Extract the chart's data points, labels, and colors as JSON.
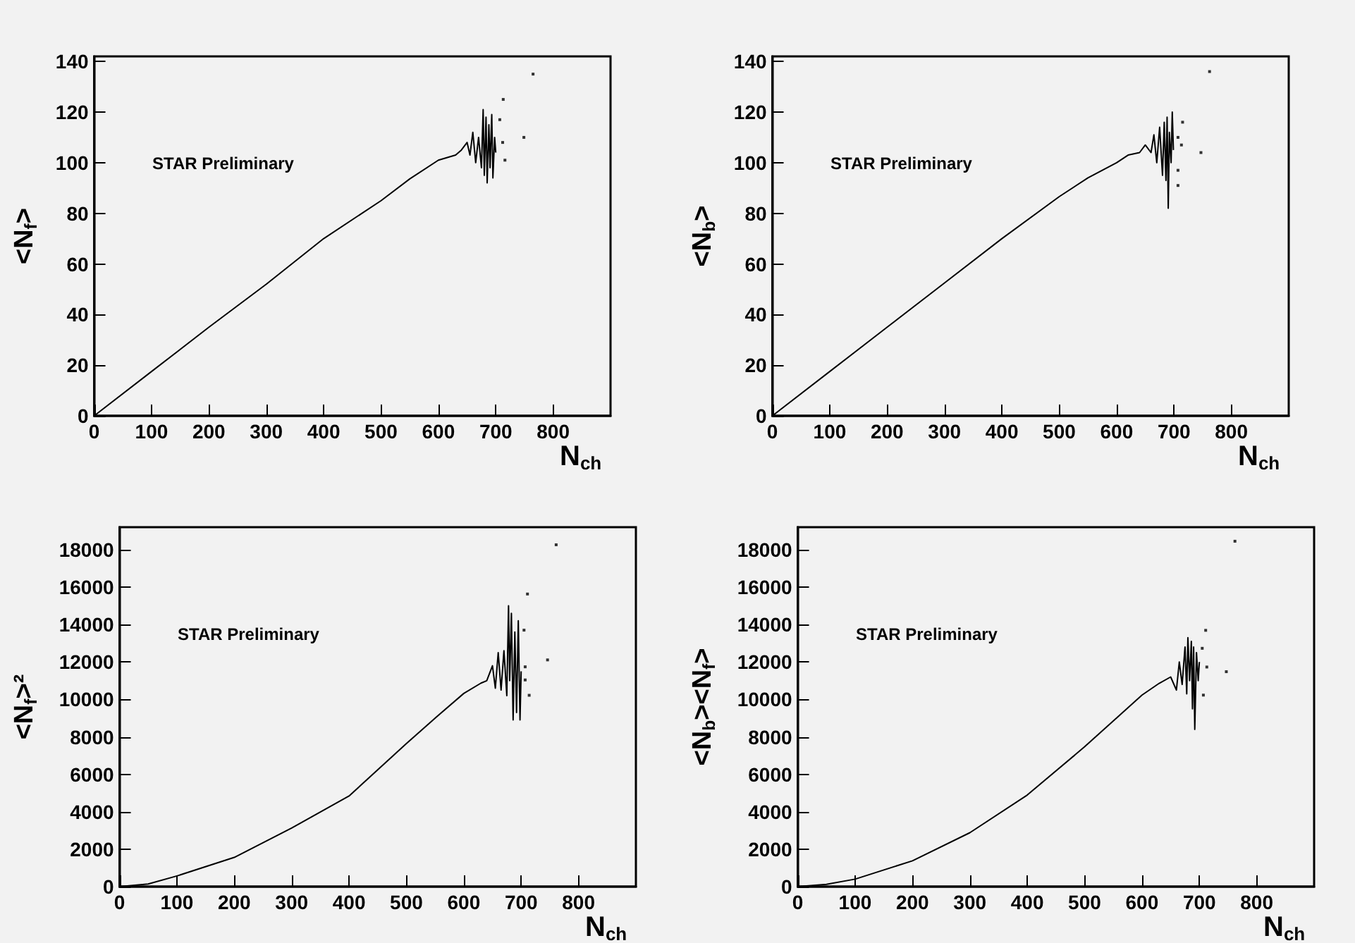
{
  "chart_data": [
    {
      "type": "line",
      "xlabel": "N$_{ch}$",
      "ylabel": "<N$_{f}$>",
      "annotations": [
        "STAR Preliminary"
      ],
      "xlim": [
        0,
        900
      ],
      "ylim": [
        0,
        142
      ],
      "xticks": [
        0,
        100,
        200,
        300,
        400,
        500,
        600,
        700,
        800
      ],
      "yticks": [
        0,
        20,
        40,
        60,
        80,
        100,
        120,
        140
      ],
      "series": [
        {
          "color": "#000000",
          "x": [
            0,
            100,
            200,
            300,
            400,
            500,
            550,
            600,
            630,
            640,
            650,
            655,
            660,
            665,
            670,
            675,
            678,
            680,
            683,
            685,
            688,
            690,
            693,
            695,
            698,
            700
          ],
          "values": [
            0,
            17.5,
            35,
            52,
            70,
            85,
            93.6,
            101,
            103,
            105,
            108,
            103,
            112,
            100,
            110,
            98,
            121,
            95,
            118,
            92,
            115,
            98,
            119,
            94,
            110,
            104
          ]
        },
        {
          "type": "scatter",
          "color": "#000000",
          "x": [
            707,
            713,
            712,
            716,
            749,
            765
          ],
          "values": [
            117,
            125,
            108,
            101,
            110,
            135
          ]
        }
      ]
    },
    {
      "type": "line",
      "xlabel": "N$_{ch}$",
      "ylabel": "<N$_{b}$>",
      "annotations": [
        "STAR Preliminary"
      ],
      "xlim": [
        0,
        900
      ],
      "ylim": [
        0,
        142
      ],
      "xticks": [
        0,
        100,
        200,
        300,
        400,
        500,
        600,
        700,
        800
      ],
      "yticks": [
        0,
        20,
        40,
        60,
        80,
        100,
        120,
        140
      ],
      "series": [
        {
          "color": "#000000",
          "x": [
            0,
            100,
            200,
            300,
            400,
            500,
            550,
            600,
            620,
            640,
            650,
            660,
            665,
            670,
            675,
            680,
            683,
            686,
            688,
            690,
            692,
            695,
            697,
            699
          ],
          "values": [
            0,
            17.5,
            35,
            52.5,
            70,
            86.6,
            94,
            100,
            103,
            104,
            107,
            104,
            111,
            100,
            114,
            95,
            116,
            93,
            118,
            82,
            112,
            100,
            120,
            105
          ]
        },
        {
          "type": "scatter",
          "color": "#000000",
          "x": [
            715,
            707,
            713,
            747,
            707,
            707,
            762
          ],
          "values": [
            116,
            110,
            107,
            104,
            97,
            91,
            136
          ]
        }
      ]
    },
    {
      "type": "line",
      "xlabel": "N$_{ch}$",
      "ylabel": "<N$_{f}$>²",
      "annotations": [
        "STAR Preliminary"
      ],
      "xlim": [
        0,
        900
      ],
      "ylim": [
        0,
        19200
      ],
      "xticks": [
        0,
        100,
        200,
        300,
        400,
        500,
        600,
        700,
        800
      ],
      "yticks": [
        0,
        2000,
        4000,
        6000,
        8000,
        10000,
        12000,
        14000,
        16000,
        18000
      ],
      "series": [
        {
          "color": "#000000",
          "x": [
            0,
            50,
            100,
            200,
            300,
            400,
            500,
            550,
            600,
            630,
            640,
            650,
            655,
            660,
            665,
            670,
            675,
            678,
            680,
            683,
            686,
            689,
            692,
            695,
            698,
            700
          ],
          "values": [
            0,
            140,
            570,
            1560,
            3130,
            4840,
            7640,
            9000,
            10320,
            10870,
            11000,
            11800,
            10600,
            12500,
            10500,
            12600,
            10200,
            15000,
            11000,
            14600,
            8900,
            13600,
            9300,
            14200,
            8900,
            11500
          ]
        },
        {
          "type": "scatter",
          "color": "#000000",
          "x": [
            711,
            705,
            707,
            707,
            714,
            746,
            761
          ],
          "values": [
            15630,
            13700,
            11740,
            11040,
            10220,
            12110,
            18260
          ]
        }
      ]
    },
    {
      "type": "line",
      "xlabel": "N$_{ch}$",
      "ylabel": "<N$_{b}$><N$_{f}$>",
      "annotations": [
        "STAR Preliminary"
      ],
      "xlim": [
        0,
        900
      ],
      "ylim": [
        0,
        19200
      ],
      "xticks": [
        0,
        100,
        200,
        300,
        400,
        500,
        600,
        700,
        800
      ],
      "yticks": [
        0,
        2000,
        4000,
        6000,
        8000,
        10000,
        12000,
        14000,
        16000,
        18000
      ],
      "series": [
        {
          "color": "#000000",
          "x": [
            0,
            50,
            100,
            200,
            300,
            400,
            500,
            600,
            630,
            650,
            660,
            665,
            670,
            675,
            678,
            680,
            683,
            686,
            688,
            690,
            692,
            695,
            698,
            700
          ],
          "values": [
            0,
            120,
            400,
            1380,
            2880,
            4890,
            7470,
            10230,
            10860,
            11200,
            10500,
            12000,
            10800,
            12800,
            10300,
            13300,
            11000,
            13100,
            9500,
            12800,
            8400,
            12500,
            11000,
            12000
          ]
        },
        {
          "type": "scatter",
          "color": "#000000",
          "x": [
            711,
            705,
            713,
            707,
            747,
            762
          ],
          "values": [
            13690,
            12730,
            11730,
            10230,
            11480,
            18450
          ]
        }
      ]
    }
  ]
}
